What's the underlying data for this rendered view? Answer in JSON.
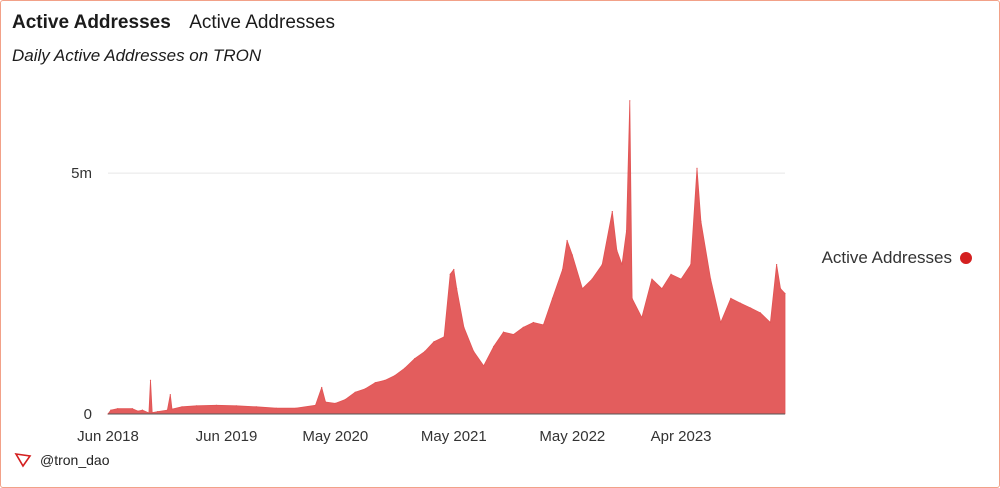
{
  "header": {
    "title": "Active Addresses",
    "name": "Active Addresses",
    "subtitle": "Daily Active Addresses on TRON"
  },
  "footer": {
    "handle": "@tron_dao"
  },
  "colors": {
    "series": "#e25454",
    "frame": "#f2a188",
    "dot": "#d42020"
  },
  "chart_data": {
    "type": "area",
    "title": "Active Addresses",
    "subtitle": "Daily Active Addresses on TRON",
    "xlabel": "",
    "ylabel": "",
    "x_ticks": [
      "Jun 2018",
      "Jun 2019",
      "May 2020",
      "May 2021",
      "May 2022",
      "Apr 2023"
    ],
    "y_ticks": [
      "0",
      "5m"
    ],
    "y_tick_values": [
      0,
      5000000
    ],
    "ylim": [
      0,
      6600000
    ],
    "xlim": [
      "2018-06-01",
      "2024-02-15"
    ],
    "grid": true,
    "legend_position": "right",
    "series": [
      {
        "name": "Active Addresses",
        "color": "#e25454",
        "points": [
          [
            "2018-06-01",
            0
          ],
          [
            "2018-06-10",
            80000
          ],
          [
            "2018-07-01",
            110000
          ],
          [
            "2018-08-15",
            110000
          ],
          [
            "2018-09-01",
            60000
          ],
          [
            "2018-09-15",
            80000
          ],
          [
            "2018-10-05",
            20000
          ],
          [
            "2018-10-10",
            700000
          ],
          [
            "2018-10-15",
            30000
          ],
          [
            "2018-11-01",
            50000
          ],
          [
            "2018-12-01",
            80000
          ],
          [
            "2018-12-10",
            400000
          ],
          [
            "2018-12-15",
            100000
          ],
          [
            "2019-01-15",
            150000
          ],
          [
            "2019-03-01",
            170000
          ],
          [
            "2019-05-01",
            180000
          ],
          [
            "2019-07-01",
            170000
          ],
          [
            "2019-09-01",
            150000
          ],
          [
            "2019-11-01",
            120000
          ],
          [
            "2020-01-01",
            120000
          ],
          [
            "2020-03-01",
            180000
          ],
          [
            "2020-03-20",
            550000
          ],
          [
            "2020-04-01",
            250000
          ],
          [
            "2020-05-01",
            220000
          ],
          [
            "2020-06-01",
            300000
          ],
          [
            "2020-07-01",
            450000
          ],
          [
            "2020-08-01",
            520000
          ],
          [
            "2020-09-01",
            650000
          ],
          [
            "2020-10-01",
            700000
          ],
          [
            "2020-11-01",
            800000
          ],
          [
            "2020-12-01",
            950000
          ],
          [
            "2021-01-01",
            1150000
          ],
          [
            "2021-02-01",
            1300000
          ],
          [
            "2021-03-01",
            1500000
          ],
          [
            "2021-04-01",
            1600000
          ],
          [
            "2021-04-20",
            2900000
          ],
          [
            "2021-05-01",
            3000000
          ],
          [
            "2021-05-10",
            2600000
          ],
          [
            "2021-06-01",
            1800000
          ],
          [
            "2021-07-01",
            1300000
          ],
          [
            "2021-08-01",
            1000000
          ],
          [
            "2021-09-01",
            1400000
          ],
          [
            "2021-10-01",
            1700000
          ],
          [
            "2021-11-01",
            1650000
          ],
          [
            "2021-12-01",
            1800000
          ],
          [
            "2022-01-01",
            1900000
          ],
          [
            "2022-02-01",
            1850000
          ],
          [
            "2022-03-01",
            2400000
          ],
          [
            "2022-04-01",
            3000000
          ],
          [
            "2022-04-15",
            3600000
          ],
          [
            "2022-05-01",
            3300000
          ],
          [
            "2022-06-01",
            2600000
          ],
          [
            "2022-07-01",
            2800000
          ],
          [
            "2022-08-01",
            3100000
          ],
          [
            "2022-09-01",
            4200000
          ],
          [
            "2022-09-15",
            3400000
          ],
          [
            "2022-10-01",
            3100000
          ],
          [
            "2022-10-15",
            3800000
          ],
          [
            "2022-10-25",
            6500000
          ],
          [
            "2022-11-01",
            2400000
          ],
          [
            "2022-12-01",
            2000000
          ],
          [
            "2023-01-01",
            2800000
          ],
          [
            "2023-02-01",
            2600000
          ],
          [
            "2023-03-01",
            2900000
          ],
          [
            "2023-04-01",
            2800000
          ],
          [
            "2023-05-01",
            3100000
          ],
          [
            "2023-05-20",
            5100000
          ],
          [
            "2023-06-01",
            4000000
          ],
          [
            "2023-07-01",
            2800000
          ],
          [
            "2023-08-01",
            1900000
          ],
          [
            "2023-09-01",
            2400000
          ],
          [
            "2023-10-01",
            2300000
          ],
          [
            "2023-11-01",
            2200000
          ],
          [
            "2023-12-01",
            2100000
          ],
          [
            "2024-01-01",
            1900000
          ],
          [
            "2024-01-20",
            3100000
          ],
          [
            "2024-02-01",
            2600000
          ],
          [
            "2024-02-15",
            2500000
          ]
        ]
      }
    ]
  }
}
